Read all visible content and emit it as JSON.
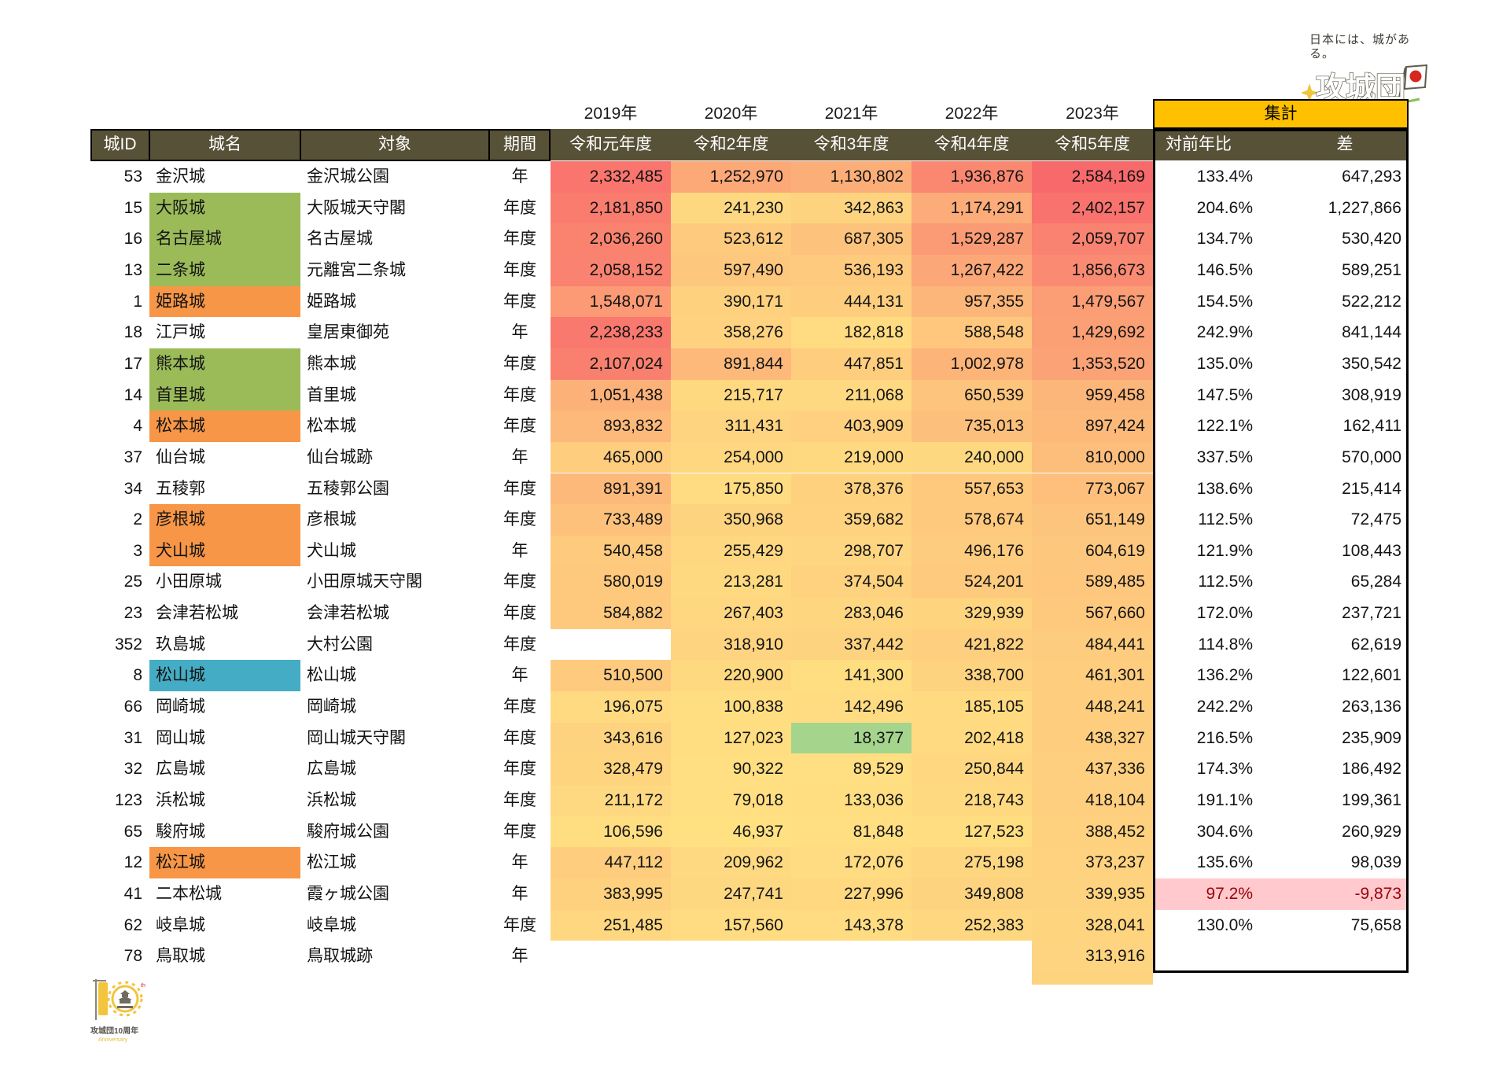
{
  "logo": {
    "tagline": "日本には、城がある。",
    "brand": "攻城団"
  },
  "header": {
    "year_labels": [
      "2019年",
      "2020年",
      "2021年",
      "2022年",
      "2023年"
    ],
    "summary_label": "集計",
    "columns": {
      "id": "城ID",
      "name": "城名",
      "target": "対象",
      "period": "期間",
      "era_years": [
        "令和元年度",
        "令和2年度",
        "令和3年度",
        "令和4年度",
        "令和5年度"
      ],
      "yoy": "対前年比",
      "diff": "差"
    }
  },
  "rows": [
    {
      "id": "53",
      "name": "金沢城",
      "target": "金沢城公園",
      "period": "年",
      "values": [
        2332485,
        1252970,
        1130802,
        1936876,
        2584169
      ],
      "yoy": "133.4%",
      "diff": 647293,
      "highlight": "none",
      "bad": false
    },
    {
      "id": "15",
      "name": "大阪城",
      "target": "大阪城天守閣",
      "period": "年度",
      "values": [
        2181850,
        241230,
        342863,
        1174291,
        2402157
      ],
      "yoy": "204.6%",
      "diff": 1227866,
      "highlight": "green",
      "bad": false
    },
    {
      "id": "16",
      "name": "名古屋城",
      "target": "名古屋城",
      "period": "年度",
      "values": [
        2036260,
        523612,
        687305,
        1529287,
        2059707
      ],
      "yoy": "134.7%",
      "diff": 530420,
      "highlight": "green",
      "bad": false
    },
    {
      "id": "13",
      "name": "二条城",
      "target": "元離宮二条城",
      "period": "年度",
      "values": [
        2058152,
        597490,
        536193,
        1267422,
        1856673
      ],
      "yoy": "146.5%",
      "diff": 589251,
      "highlight": "green",
      "bad": false
    },
    {
      "id": "1",
      "name": "姫路城",
      "target": "姫路城",
      "period": "年度",
      "values": [
        1548071,
        390171,
        444131,
        957355,
        1479567
      ],
      "yoy": "154.5%",
      "diff": 522212,
      "highlight": "orange",
      "bad": false
    },
    {
      "id": "18",
      "name": "江戸城",
      "target": "皇居東御苑",
      "period": "年",
      "values": [
        2238233,
        358276,
        182818,
        588548,
        1429692
      ],
      "yoy": "242.9%",
      "diff": 841144,
      "highlight": "none",
      "bad": false
    },
    {
      "id": "17",
      "name": "熊本城",
      "target": "熊本城",
      "period": "年度",
      "values": [
        2107024,
        891844,
        447851,
        1002978,
        1353520
      ],
      "yoy": "135.0%",
      "diff": 350542,
      "highlight": "green",
      "bad": false
    },
    {
      "id": "14",
      "name": "首里城",
      "target": "首里城",
      "period": "年度",
      "values": [
        1051438,
        215717,
        211068,
        650539,
        959458
      ],
      "yoy": "147.5%",
      "diff": 308919,
      "highlight": "green",
      "bad": false
    },
    {
      "id": "4",
      "name": "松本城",
      "target": "松本城",
      "period": "年度",
      "values": [
        893832,
        311431,
        403909,
        735013,
        897424
      ],
      "yoy": "122.1%",
      "diff": 162411,
      "highlight": "orange",
      "bad": false
    },
    {
      "id": "37",
      "name": "仙台城",
      "target": "仙台城跡",
      "period": "年",
      "values": [
        465000,
        254000,
        219000,
        240000,
        810000
      ],
      "yoy": "337.5%",
      "diff": 570000,
      "highlight": "none",
      "bad": false
    },
    {
      "id": "34",
      "name": "五稜郭",
      "target": "五稜郭公園",
      "period": "年度",
      "values": [
        891391,
        175850,
        378376,
        557653,
        773067
      ],
      "yoy": "138.6%",
      "diff": 215414,
      "highlight": "none",
      "bad": false
    },
    {
      "id": "2",
      "name": "彦根城",
      "target": "彦根城",
      "period": "年度",
      "values": [
        733489,
        350968,
        359682,
        578674,
        651149
      ],
      "yoy": "112.5%",
      "diff": 72475,
      "highlight": "orange",
      "bad": false
    },
    {
      "id": "3",
      "name": "犬山城",
      "target": "犬山城",
      "period": "年",
      "values": [
        540458,
        255429,
        298707,
        496176,
        604619
      ],
      "yoy": "121.9%",
      "diff": 108443,
      "highlight": "orange",
      "bad": false
    },
    {
      "id": "25",
      "name": "小田原城",
      "target": "小田原城天守閣",
      "period": "年度",
      "values": [
        580019,
        213281,
        374504,
        524201,
        589485
      ],
      "yoy": "112.5%",
      "diff": 65284,
      "highlight": "none",
      "bad": false
    },
    {
      "id": "23",
      "name": "会津若松城",
      "target": "会津若松城",
      "period": "年度",
      "values": [
        584882,
        267403,
        283046,
        329939,
        567660
      ],
      "yoy": "172.0%",
      "diff": 237721,
      "highlight": "none",
      "bad": false
    },
    {
      "id": "352",
      "name": "玖島城",
      "target": "大村公園",
      "period": "年度",
      "values": [
        null,
        318910,
        337442,
        421822,
        484441
      ],
      "yoy": "114.8%",
      "diff": 62619,
      "highlight": "none",
      "bad": false
    },
    {
      "id": "8",
      "name": "松山城",
      "target": "松山城",
      "period": "年",
      "values": [
        510500,
        220900,
        141300,
        338700,
        461301
      ],
      "yoy": "136.2%",
      "diff": 122601,
      "highlight": "blue",
      "bad": false
    },
    {
      "id": "66",
      "name": "岡崎城",
      "target": "岡崎城",
      "period": "年度",
      "values": [
        196075,
        100838,
        142496,
        185105,
        448241
      ],
      "yoy": "242.2%",
      "diff": 263136,
      "highlight": "none",
      "bad": false
    },
    {
      "id": "31",
      "name": "岡山城",
      "target": "岡山城天守閣",
      "period": "年度",
      "values": [
        343616,
        127023,
        18377,
        202418,
        438327
      ],
      "yoy": "216.5%",
      "diff": 235909,
      "highlight": "none",
      "bad": false
    },
    {
      "id": "32",
      "name": "広島城",
      "target": "広島城",
      "period": "年度",
      "values": [
        328479,
        90322,
        89529,
        250844,
        437336
      ],
      "yoy": "174.3%",
      "diff": 186492,
      "highlight": "none",
      "bad": false
    },
    {
      "id": "123",
      "name": "浜松城",
      "target": "浜松城",
      "period": "年度",
      "values": [
        211172,
        79018,
        133036,
        218743,
        418104
      ],
      "yoy": "191.1%",
      "diff": 199361,
      "highlight": "none",
      "bad": false
    },
    {
      "id": "65",
      "name": "駿府城",
      "target": "駿府城公園",
      "period": "年度",
      "values": [
        106596,
        46937,
        81848,
        127523,
        388452
      ],
      "yoy": "304.6%",
      "diff": 260929,
      "highlight": "none",
      "bad": false
    },
    {
      "id": "12",
      "name": "松江城",
      "target": "松江城",
      "period": "年",
      "values": [
        447112,
        209962,
        172076,
        275198,
        373237
      ],
      "yoy": "135.6%",
      "diff": 98039,
      "highlight": "orange",
      "bad": false
    },
    {
      "id": "41",
      "name": "二本松城",
      "target": "霞ヶ城公園",
      "period": "年",
      "values": [
        383995,
        247741,
        227996,
        349808,
        339935
      ],
      "yoy": "97.2%",
      "diff": -9873,
      "highlight": "none",
      "bad": true
    },
    {
      "id": "62",
      "name": "岐阜城",
      "target": "岐阜城",
      "period": "年度",
      "values": [
        251485,
        157560,
        143378,
        252383,
        328041
      ],
      "yoy": "130.0%",
      "diff": 75658,
      "highlight": "none",
      "bad": false
    },
    {
      "id": "78",
      "name": "鳥取城",
      "target": "鳥取城跡",
      "period": "年",
      "values": [
        null,
        null,
        null,
        null,
        313916
      ],
      "yoy": null,
      "diff": null,
      "highlight": "none",
      "bad": false
    }
  ],
  "badge": {
    "title": "攻城団10周年",
    "subtitle": "Anniversary"
  },
  "colors": {
    "header_olive": "#575137",
    "summary_gold": "#FFC000",
    "highlight_green": "#9BBB59",
    "highlight_orange": "#F79646",
    "highlight_blue": "#45ACC5",
    "bad_bg": "#FFC9CE",
    "bad_text": "#9C0006"
  },
  "heatmap": {
    "min": 18377,
    "mid": 47000,
    "max": 2584169,
    "stops": {
      "green": "#A5D48D",
      "yellow": "#FFE182",
      "red": "#F8696B"
    }
  }
}
